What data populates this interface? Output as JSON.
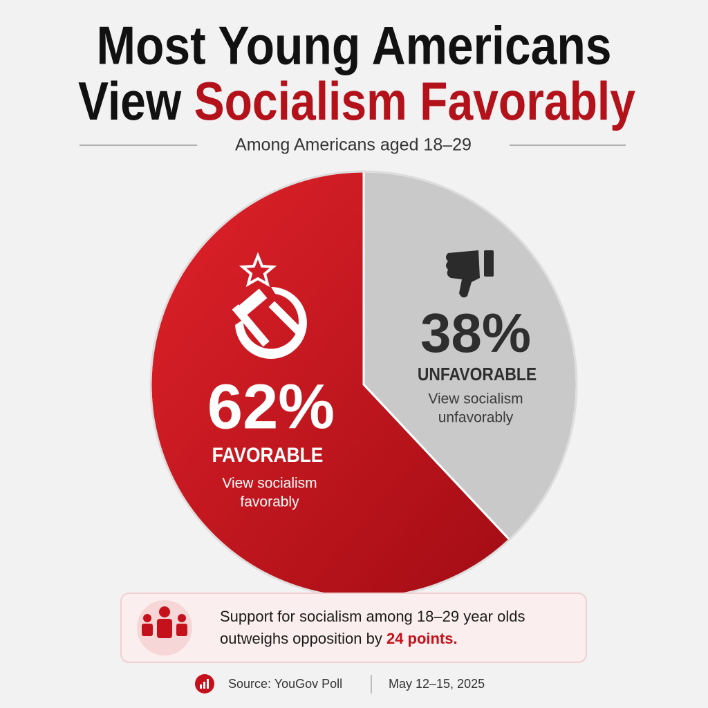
{
  "chart_data": {
    "type": "pie",
    "title": {
      "line1": "Most Young Americans",
      "line2": "View",
      "highlight": "Socialism Favorably"
    },
    "subtitle": "Among Americans aged 18–29",
    "categories": [
      "FAVORABLE",
      "UNFAVORABLE"
    ],
    "values": [
      62,
      38
    ],
    "value_labels": [
      "62%",
      "38%"
    ],
    "descriptions": [
      [
        "View socialism",
        "favorably"
      ],
      [
        "View socialism",
        "unfavorably"
      ]
    ],
    "colors": [
      "#c4111b",
      "#c9c9c9"
    ],
    "callout": {
      "lines": [
        "Support for socialism among 18–29 year olds",
        "outweighs opposition by"
      ],
      "highlight": "24 points."
    },
    "source": "Source: YouGov Poll",
    "date": "May 12–15, 2025"
  }
}
